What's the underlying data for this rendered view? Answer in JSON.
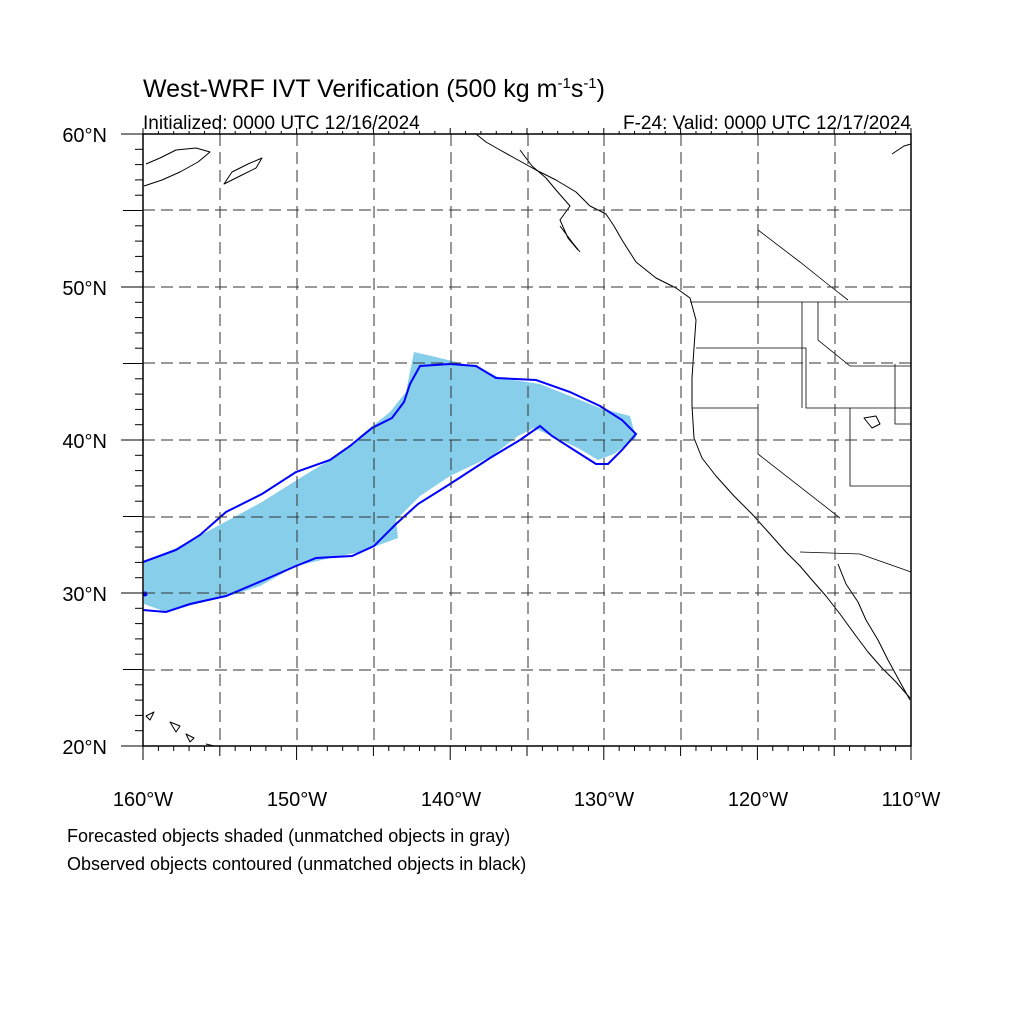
{
  "title_prefix": "West-WRF IVT Verification (500 kg m",
  "title_exp1": "-1",
  "title_mid": "s",
  "title_exp2": "-1",
  "title_suffix": ")",
  "init_text": "Initialized: 0000 UTC 12/16/2024",
  "valid_text": "F-24: Valid: 0000 UTC 12/17/2024",
  "lat_labels": [
    "60°N",
    "50°N",
    "40°N",
    "30°N",
    "20°N"
  ],
  "lon_labels": [
    "160°W",
    "150°W",
    "140°W",
    "130°W",
    "120°W",
    "110°W"
  ],
  "extent": {
    "lon_min": -160,
    "lon_max": -110,
    "lat_min": 20,
    "lat_max": 60
  },
  "legend_line1": "Forecasted objects shaded (unmatched objects in gray)",
  "legend_line2": "Observed objects contoured (unmatched objects in black)",
  "colors": {
    "forecast_fill": "#87ceeb",
    "observed_contour": "#0000ff",
    "coast": "#000000"
  }
}
